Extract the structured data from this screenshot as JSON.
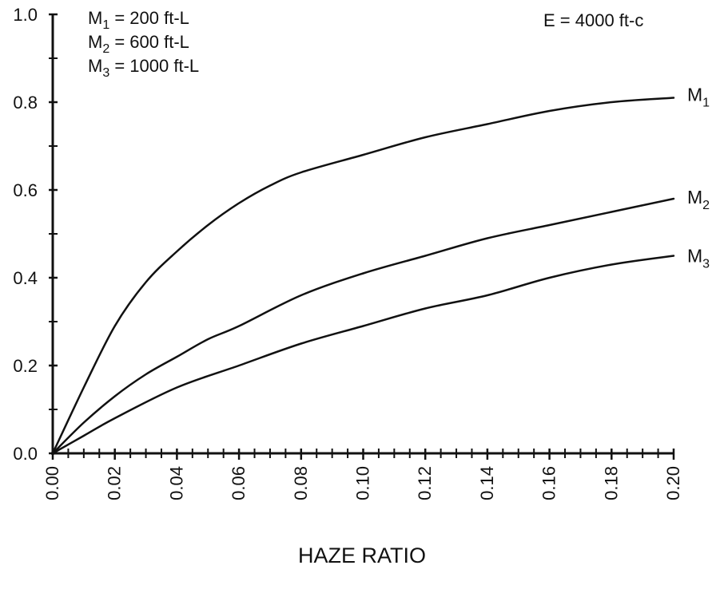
{
  "chart_data": {
    "type": "line",
    "title": "",
    "xlabel": "HAZE RATIO",
    "ylabel": "",
    "xlim": [
      0,
      0.2
    ],
    "ylim": [
      0,
      1.0
    ],
    "grid": false,
    "x_tick_labels": [
      "0.00",
      "0.02",
      "0.04",
      "0.06",
      "0.08",
      "0.10",
      "0.12",
      "0.14",
      "0.16",
      "0.18",
      "0.20"
    ],
    "y_tick_labels": [
      "0.0",
      "0.2",
      "0.4",
      "0.6",
      "0.8",
      "1.0"
    ],
    "annotation": "E = 4000 ft-c",
    "legend": [
      {
        "base": "M",
        "sub": "1",
        "text": " = 200 ft-L"
      },
      {
        "base": "M",
        "sub": "2",
        "text": " = 600 ft-L"
      },
      {
        "base": "M",
        "sub": "3",
        "text": " = 1000 ft-L"
      }
    ],
    "series": [
      {
        "name": "M1",
        "label_base": "M",
        "label_sub": "1",
        "x": [
          0.0,
          0.01,
          0.02,
          0.03,
          0.04,
          0.05,
          0.06,
          0.07,
          0.08,
          0.1,
          0.12,
          0.14,
          0.16,
          0.18,
          0.2
        ],
        "y": [
          0.0,
          0.15,
          0.29,
          0.39,
          0.46,
          0.52,
          0.57,
          0.61,
          0.64,
          0.68,
          0.72,
          0.75,
          0.78,
          0.8,
          0.81
        ]
      },
      {
        "name": "M2",
        "label_base": "M",
        "label_sub": "2",
        "x": [
          0.0,
          0.01,
          0.02,
          0.03,
          0.04,
          0.05,
          0.06,
          0.08,
          0.1,
          0.12,
          0.14,
          0.16,
          0.18,
          0.2
        ],
        "y": [
          0.0,
          0.07,
          0.13,
          0.18,
          0.22,
          0.26,
          0.29,
          0.36,
          0.41,
          0.45,
          0.49,
          0.52,
          0.55,
          0.58
        ]
      },
      {
        "name": "M3",
        "label_base": "M",
        "label_sub": "3",
        "x": [
          0.0,
          0.01,
          0.02,
          0.04,
          0.06,
          0.08,
          0.1,
          0.12,
          0.14,
          0.16,
          0.18,
          0.2
        ],
        "y": [
          0.0,
          0.04,
          0.08,
          0.15,
          0.2,
          0.25,
          0.29,
          0.33,
          0.36,
          0.4,
          0.43,
          0.45
        ]
      }
    ]
  }
}
